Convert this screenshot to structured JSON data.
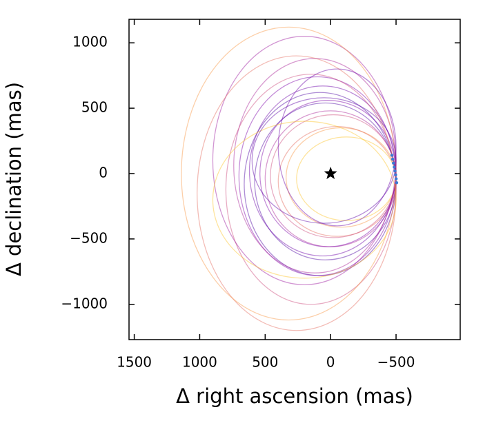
{
  "chart_data": {
    "type": "orbits",
    "x_label": "Δ right ascension (mas)",
    "y_label": "Δ declination (mas)",
    "xlim": [
      1540,
      -990
    ],
    "ylim": [
      -1270,
      1180
    ],
    "xticks": [
      1500,
      1000,
      500,
      0,
      {
        "value": -500,
        "label": "−500"
      }
    ],
    "yticks": [
      1000,
      500,
      0,
      {
        "value": -500,
        "label": "−500"
      },
      {
        "value": -1000,
        "label": "−1000"
      }
    ],
    "star": {
      "x": 0,
      "y": 0
    },
    "orbits": [
      {
        "cx": -120,
        "cy": -40,
        "rx": 380,
        "ry": 320,
        "color": "#fdc328"
      },
      {
        "cx": -80,
        "cy": -30,
        "rx": 420,
        "ry": 380,
        "color": "#f89441"
      },
      {
        "cx": -50,
        "cy": -60,
        "rx": 450,
        "ry": 420,
        "color": "#e56b5d"
      },
      {
        "cx": -20,
        "cy": -20,
        "rx": 480,
        "ry": 470,
        "color": "#cb4679"
      },
      {
        "cx": 0,
        "cy": -40,
        "rx": 500,
        "ry": 520,
        "color": "#a82296"
      },
      {
        "cx": 20,
        "cy": 0,
        "rx": 520,
        "ry": 560,
        "color": "#7d03a8"
      },
      {
        "cx": 40,
        "cy": -60,
        "rx": 540,
        "ry": 600,
        "color": "#4b03a1"
      },
      {
        "cx": 60,
        "cy": 20,
        "rx": 560,
        "ry": 650,
        "color": "#6a00a8"
      },
      {
        "cx": 80,
        "cy": -80,
        "rx": 580,
        "ry": 700,
        "color": "#4b03a1"
      },
      {
        "cx": 100,
        "cy": -20,
        "rx": 600,
        "ry": 760,
        "color": "#7d03a8"
      },
      {
        "cx": 120,
        "cy": 60,
        "rx": 620,
        "ry": 820,
        "color": "#a82296"
      },
      {
        "cx": 150,
        "cy": -120,
        "rx": 650,
        "ry": 880,
        "color": "#cb4679"
      },
      {
        "cx": 200,
        "cy": 100,
        "rx": 700,
        "ry": 950,
        "color": "#9c179e"
      },
      {
        "cx": 260,
        "cy": -150,
        "rx": 760,
        "ry": 1050,
        "color": "#e56b5d"
      },
      {
        "cx": 320,
        "cy": 0,
        "rx": 820,
        "ry": 1120,
        "color": "#f89441"
      },
      {
        "cx": -50,
        "cy": 200,
        "rx": 450,
        "ry": 600,
        "color": "#6a00a8"
      },
      {
        "cx": 200,
        "cy": -200,
        "rx": 700,
        "ry": 600,
        "color": "#fdc328"
      },
      {
        "cx": 50,
        "cy": 100,
        "rx": 550,
        "ry": 480,
        "color": "#5c01a6"
      }
    ],
    "points": {
      "color": "#3a7bd5",
      "x": [
        -468,
        -474,
        -480,
        -486,
        -492,
        -497,
        -501,
        -505
      ],
      "y": [
        140,
        110,
        80,
        50,
        20,
        -10,
        -40,
        -70
      ]
    }
  }
}
